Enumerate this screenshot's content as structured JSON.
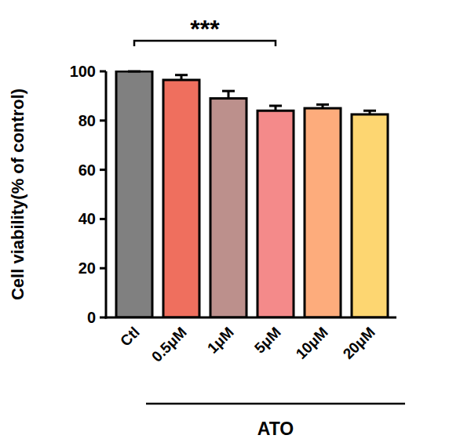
{
  "chart_data": {
    "type": "bar",
    "ylabel": "Cell viability(% of control)",
    "categories": [
      "Ctl",
      "0.5μM",
      "1μM",
      "5μM",
      "10μM",
      "20μM"
    ],
    "values": [
      100,
      96.5,
      89,
      84,
      85,
      82.5
    ],
    "errors": [
      0,
      2,
      3,
      2,
      1.5,
      1.5
    ],
    "colors": [
      "#808080",
      "#ef6f5e",
      "#bc908c",
      "#f48a8a",
      "#fdac7c",
      "#fdd671"
    ],
    "ylim": [
      0,
      100
    ],
    "yticks": [
      0,
      20,
      40,
      60,
      80,
      100
    ],
    "annotations": [
      {
        "text": "***",
        "from": "Ctl",
        "to": "5μM"
      },
      {
        "text": "ATO",
        "from": "0.5μM",
        "to": "20μM"
      }
    ]
  }
}
